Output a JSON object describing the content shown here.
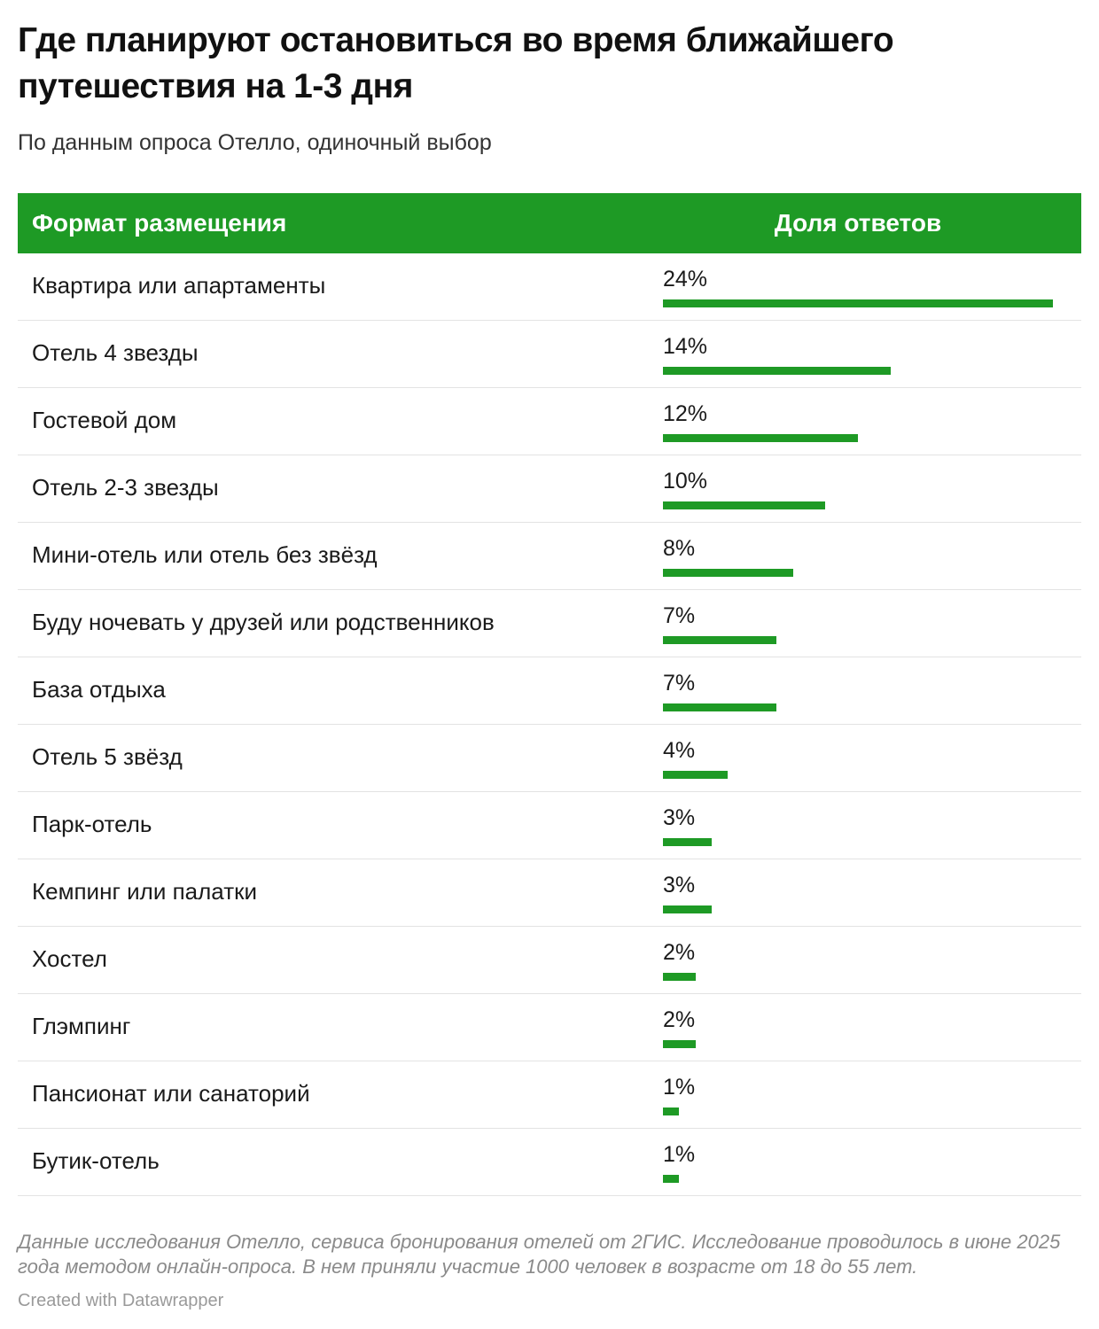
{
  "title": "Где планируют остановиться во время ближайшего путешествия на 1-3 дня",
  "subtitle": "По данным опроса Отелло, одиночный выбор",
  "table": {
    "col_name": "Формат размещения",
    "col_value": "Доля ответов"
  },
  "colors": {
    "accent": "#1e9a25",
    "row_border": "#e3e3e3"
  },
  "chart_data": {
    "type": "bar",
    "categories": [
      "Квартира или апартаменты",
      "Отель 4 звезды",
      "Гостевой дом",
      "Отель 2-3 звезды",
      "Мини-отель или отель без звёзд",
      "Буду ночевать у друзей или родственников",
      "База отдыха",
      "Отель 5 звёзд",
      "Парк-отель",
      "Кемпинг или палатки",
      "Хостел",
      "Глэмпинг",
      "Пансионат или санаторий",
      "Бутик-отель"
    ],
    "values": [
      24,
      14,
      12,
      10,
      8,
      7,
      7,
      4,
      3,
      3,
      2,
      2,
      1,
      1
    ],
    "labels": [
      "24%",
      "14%",
      "12%",
      "10%",
      "8%",
      "7%",
      "7%",
      "4%",
      "3%",
      "3%",
      "2%",
      "2%",
      "1%",
      "1%"
    ],
    "xlim": [
      0,
      24
    ]
  },
  "notes": "Данные исследования Отелло, сервиса бронирования отелей от 2ГИС. Исследование проводилось в июне 2025 года методом онлайн-опроса. В нем приняли участие 1000 человек в возрасте от 18 до 55 лет.",
  "credit": "Created with Datawrapper"
}
